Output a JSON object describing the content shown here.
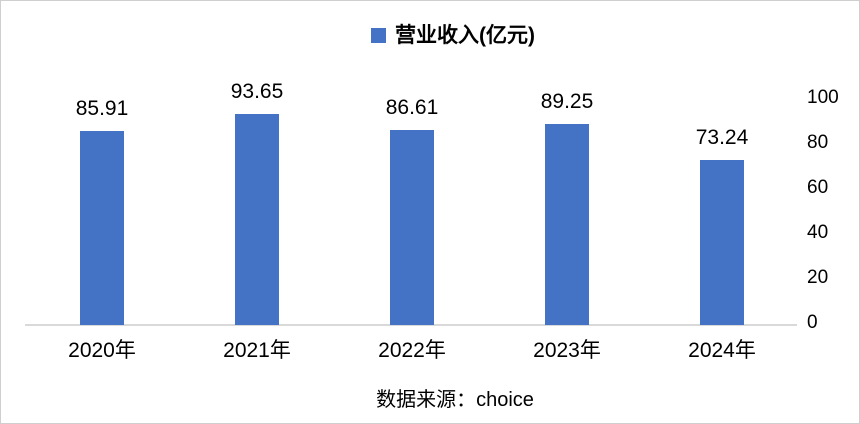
{
  "chart_data": {
    "type": "bar",
    "title": "",
    "legend": [
      "营业收入(亿元)"
    ],
    "legend_position": "top-center",
    "categories": [
      "2020年",
      "2021年",
      "2022年",
      "2023年",
      "2024年"
    ],
    "values": [
      85.91,
      93.65,
      86.61,
      89.25,
      73.24
    ],
    "data_labels": [
      "85.91",
      "93.65",
      "86.61",
      "89.25",
      "73.24"
    ],
    "xlabel": "",
    "ylabel": "",
    "ylim": [
      0,
      100
    ],
    "y_ticks": [
      0,
      20,
      40,
      60,
      80,
      100
    ],
    "y_axis_position": "right",
    "grid": false,
    "data_labels_shown": true,
    "bar_color": "#4472C4"
  },
  "legend": {
    "label": "营业收入(亿元)"
  },
  "source_text": "数据来源：choice",
  "colors": {
    "bar": "#4472C4",
    "axis_line": "#d9d9d9",
    "text": "#000000",
    "frame_border": "#cfcfcf"
  }
}
